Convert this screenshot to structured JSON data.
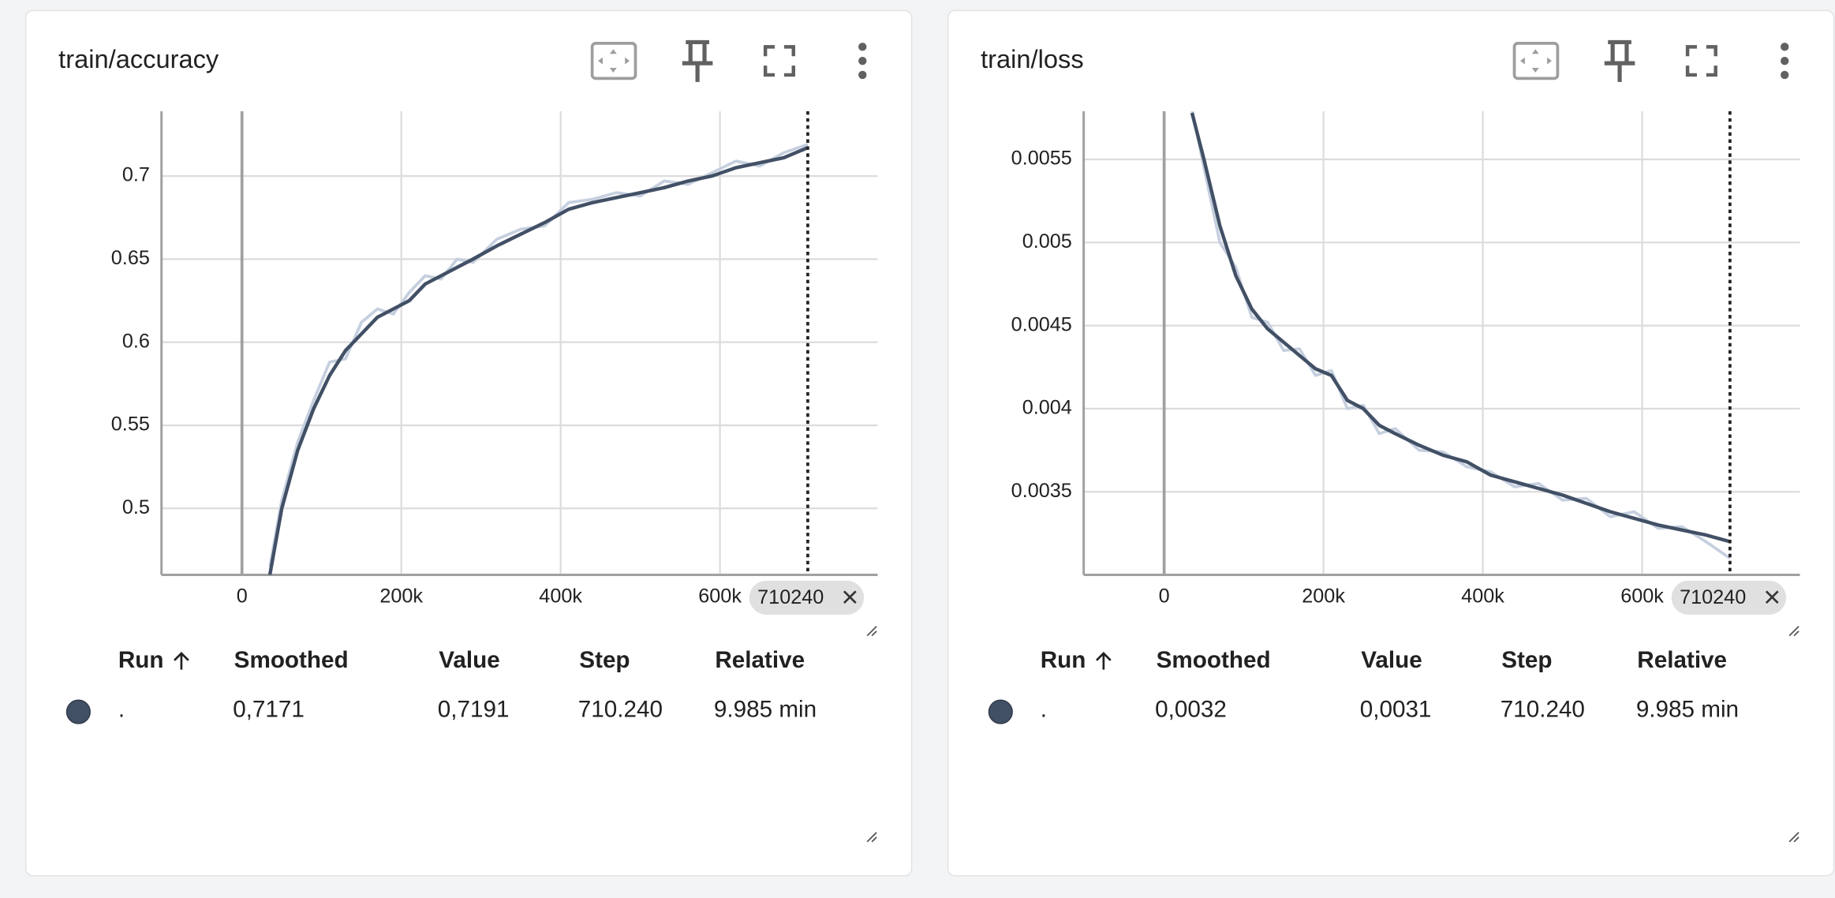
{
  "chart_data": [
    {
      "type": "line",
      "title": "train/accuracy",
      "x": [
        35000,
        50000,
        70000,
        90000,
        110000,
        130000,
        150000,
        170000,
        190000,
        210000,
        230000,
        250000,
        270000,
        290000,
        320000,
        350000,
        380000,
        410000,
        440000,
        470000,
        500000,
        530000,
        560000,
        590000,
        620000,
        650000,
        680000,
        710240
      ],
      "series": [
        {
          "color": "#c5cfdf",
          "values": [
            0.465,
            0.505,
            0.54,
            0.565,
            0.588,
            0.59,
            0.612,
            0.62,
            0.617,
            0.63,
            0.64,
            0.638,
            0.65,
            0.648,
            0.662,
            0.668,
            0.67,
            0.684,
            0.686,
            0.69,
            0.688,
            0.697,
            0.695,
            0.702,
            0.709,
            0.706,
            0.714,
            0.7191
          ]
        },
        {
          "name": ".",
          "color": "#425066",
          "values": [
            0.46,
            0.5,
            0.535,
            0.56,
            0.58,
            0.595,
            0.605,
            0.615,
            0.62,
            0.625,
            0.635,
            0.64,
            0.645,
            0.65,
            0.658,
            0.665,
            0.672,
            0.68,
            0.684,
            0.687,
            0.69,
            0.693,
            0.697,
            0.7,
            0.705,
            0.708,
            0.711,
            0.7171
          ]
        }
      ],
      "xlim": [
        -101000,
        798000
      ],
      "xticks": [
        0,
        {
          "value": 200000,
          "label": "200k"
        },
        {
          "value": 400000,
          "label": "400k"
        },
        {
          "value": 600000,
          "label": "600k"
        }
      ],
      "ylim": [
        0.46,
        0.739
      ],
      "yticks": [
        0.5,
        0.55,
        0.6,
        0.65,
        0.7
      ],
      "grid": true,
      "step_marker": 710240
    },
    {
      "type": "line",
      "title": "train/loss",
      "x": [
        35000,
        50000,
        70000,
        90000,
        110000,
        130000,
        150000,
        170000,
        190000,
        210000,
        230000,
        250000,
        270000,
        290000,
        320000,
        350000,
        380000,
        410000,
        440000,
        470000,
        500000,
        530000,
        560000,
        590000,
        620000,
        650000,
        680000,
        710240
      ],
      "series": [
        {
          "color": "#c5cfdf",
          "values": [
            0.0058,
            0.00545,
            0.005,
            0.00485,
            0.00455,
            0.00452,
            0.00435,
            0.00436,
            0.0042,
            0.00423,
            0.004,
            0.00402,
            0.00385,
            0.00388,
            0.00375,
            0.00374,
            0.00365,
            0.00362,
            0.00353,
            0.00355,
            0.00345,
            0.00346,
            0.00335,
            0.00338,
            0.00328,
            0.00329,
            0.0032,
            0.0031
          ]
        },
        {
          "name": ".",
          "color": "#425066",
          "values": [
            0.00578,
            0.0055,
            0.0051,
            0.0048,
            0.0046,
            0.00448,
            0.0044,
            0.00432,
            0.00424,
            0.0042,
            0.00405,
            0.004,
            0.0039,
            0.00385,
            0.00378,
            0.00372,
            0.00368,
            0.0036,
            0.00356,
            0.00352,
            0.00348,
            0.00343,
            0.00338,
            0.00334,
            0.0033,
            0.00327,
            0.00324,
            0.0032
          ]
        }
      ],
      "xlim": [
        -101000,
        798000
      ],
      "xticks": [
        0,
        {
          "value": 200000,
          "label": "200k"
        },
        {
          "value": 400000,
          "label": "400k"
        },
        {
          "value": 600000,
          "label": "600k"
        }
      ],
      "ylim": [
        0.003,
        0.00579
      ],
      "yticks": [
        0.0035,
        0.004,
        0.0045,
        0.005,
        0.0055
      ],
      "grid": true,
      "step_marker": 710240
    }
  ],
  "cards": [
    {
      "table": {
        "headers": [
          "Run",
          "Smoothed",
          "Value",
          "Step",
          "Relative"
        ],
        "rows": [
          [
            ".",
            "0,7171",
            "0,7191",
            "710.240",
            "9.985 min"
          ]
        ]
      }
    },
    {
      "table": {
        "headers": [
          "Run",
          "Smoothed",
          "Value",
          "Step",
          "Relative"
        ],
        "rows": [
          [
            ".",
            "0,0032",
            "0,0031",
            "710.240",
            "9.985 min"
          ]
        ]
      }
    }
  ]
}
